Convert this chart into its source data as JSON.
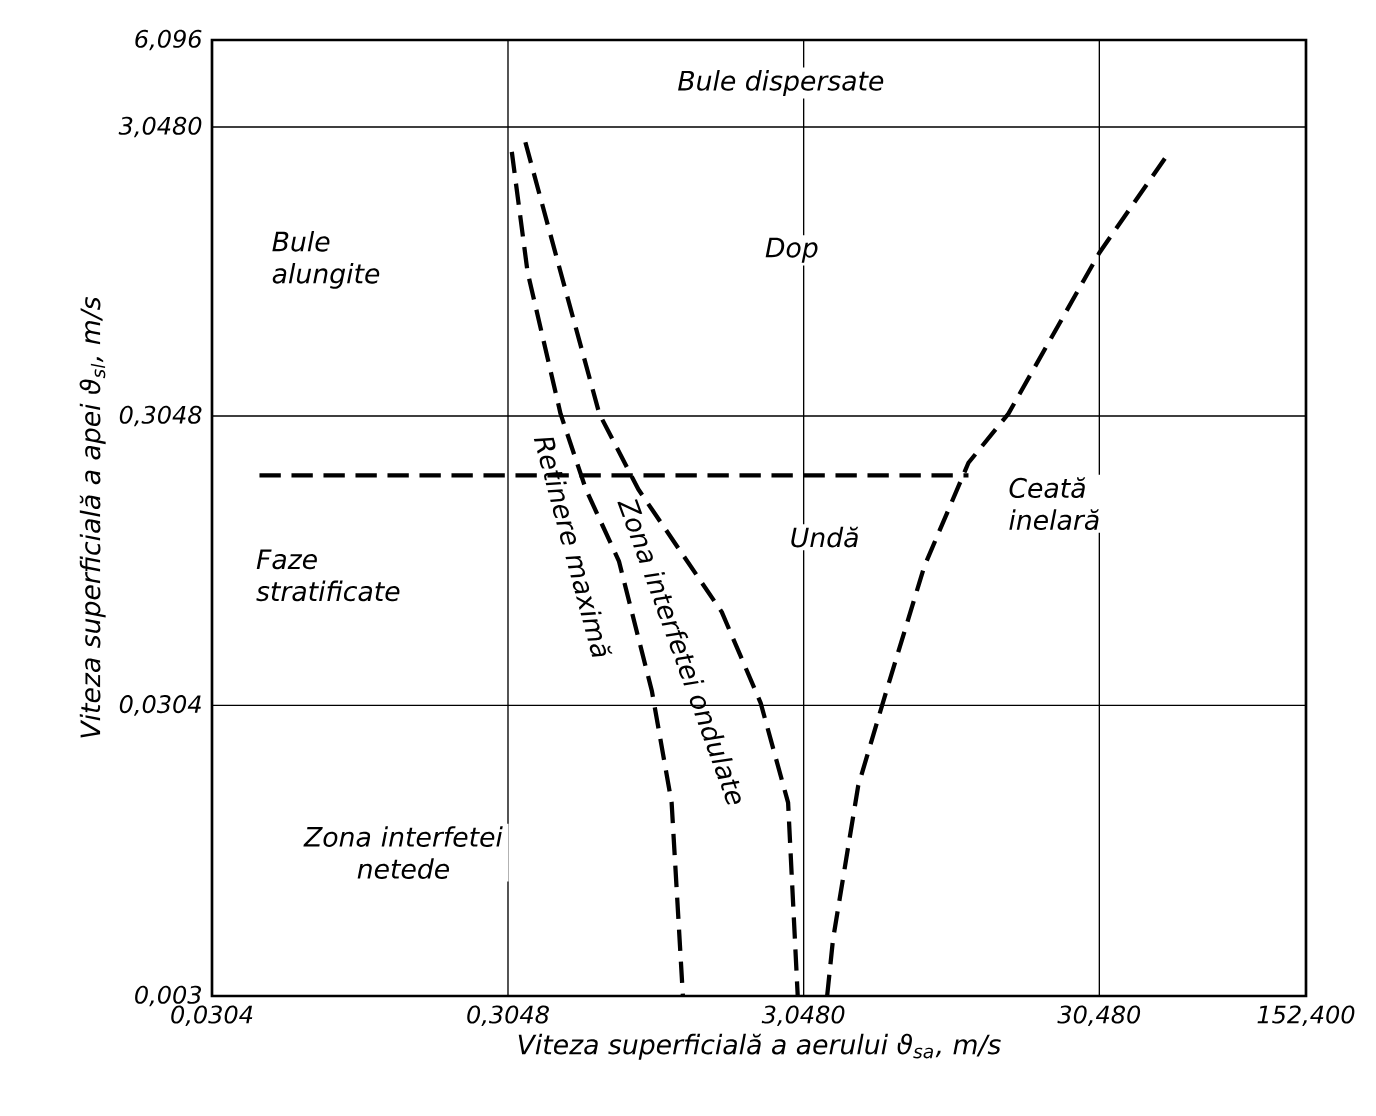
{
  "chart_data": {
    "type": "line",
    "xlabel": "Viteza superficială a aerului ϑ$_{sa}$, m/s",
    "ylabel": "Viteza superficială a apei ϑ$_{sl}$, m/s",
    "log": "xy",
    "grid": true,
    "line_style": "dashed",
    "xlim": [
      0.0304,
      152.4
    ],
    "ylim": [
      0.003,
      6.096
    ],
    "xticks": [
      {
        "value": 0.0304,
        "label": "0,0304"
      },
      {
        "value": 0.3048,
        "label": "0,3048"
      },
      {
        "value": 3.048,
        "label": "3,0480"
      },
      {
        "value": 30.48,
        "label": "30,480"
      },
      {
        "value": 152.4,
        "label": "152,400"
      }
    ],
    "yticks": [
      {
        "value": 0.003,
        "label": "0,003"
      },
      {
        "value": 0.0304,
        "label": "0,0304"
      },
      {
        "value": 0.3048,
        "label": "0,3048"
      },
      {
        "value": 3.048,
        "label": "3,0480"
      },
      {
        "value": 6.096,
        "label": "6,096"
      }
    ],
    "series": [
      {
        "color": "#000000",
        "x": [
          0.044,
          11
        ],
        "values": [
          0.19,
          0.19
        ]
      },
      {
        "color": "#000000",
        "x": [
          0.314,
          0.355,
          0.459,
          0.559,
          0.723,
          0.935,
          1.09,
          1.19
        ],
        "values": [
          2.5,
          0.96,
          0.31,
          0.17,
          0.096,
          0.034,
          0.014,
          0.003
        ]
      },
      {
        "color": "#000000",
        "x": [
          0.349,
          0.459,
          0.621,
          0.841,
          1.61,
          2.18,
          2.7,
          2.91
        ],
        "values": [
          2.7,
          0.96,
          0.31,
          0.17,
          0.064,
          0.031,
          0.014,
          0.003
        ]
      },
      {
        "color": "#000000",
        "x": [
          3.66,
          3.83,
          4.66,
          5.75,
          7.8,
          11,
          15,
          30.5,
          52.6
        ],
        "values": [
          0.003,
          0.0047,
          0.016,
          0.033,
          0.092,
          0.21,
          0.31,
          1.12,
          2.5
        ]
      }
    ],
    "annotations": [
      "Bule dispersate",
      "Bule alungite",
      "Dop",
      "Faze stratificate",
      "Undă",
      "Ceată inelară",
      "Zona interfetei netede",
      "Retinere maximă",
      "Zona interfetei ondulate"
    ]
  }
}
